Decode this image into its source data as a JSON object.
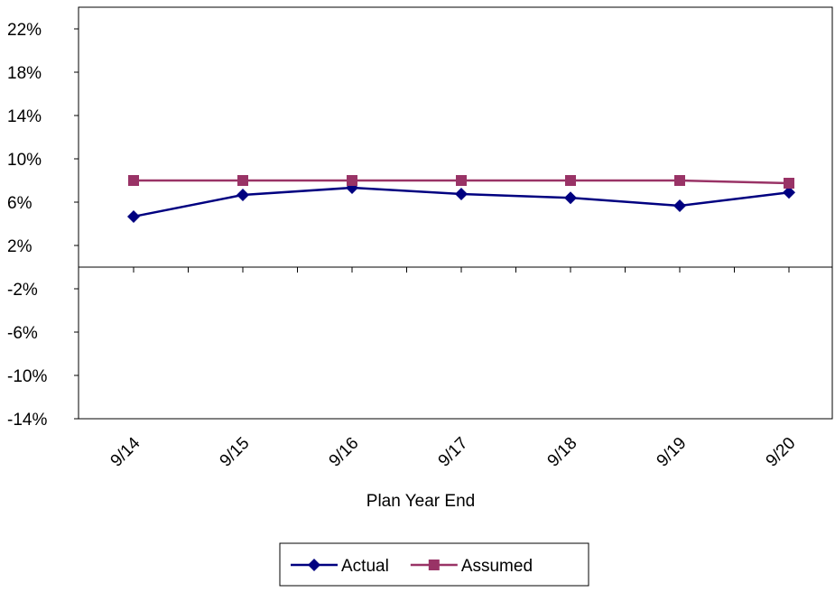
{
  "chart_data": {
    "type": "line",
    "x_label": "Plan Year End",
    "categories": [
      "9/14",
      "9/15",
      "9/16",
      "9/17",
      "9/18",
      "9/19",
      "9/20"
    ],
    "series": [
      {
        "name": "Actual",
        "color": "#000080",
        "marker": "diamond",
        "values": [
          4.67,
          6.67,
          7.33,
          6.75,
          6.4,
          5.67,
          6.9
        ]
      },
      {
        "name": "Assumed",
        "color": "#993366",
        "marker": "square",
        "values": [
          8,
          8,
          8,
          8,
          8,
          8,
          7.75
        ]
      }
    ],
    "ylim": [
      -14,
      24
    ],
    "yticks": [
      {
        "value": -14,
        "label": "-14%"
      },
      {
        "value": -10,
        "label": "-10%"
      },
      {
        "value": -6,
        "label": "-6%"
      },
      {
        "value": -2,
        "label": "-2%"
      },
      {
        "value": 2,
        "label": "2%"
      },
      {
        "value": 6,
        "label": "6%"
      },
      {
        "value": 10,
        "label": "10%"
      },
      {
        "value": 14,
        "label": "14%"
      },
      {
        "value": 18,
        "label": "18%"
      },
      {
        "value": 22,
        "label": "22%"
      }
    ],
    "legend": "bottom"
  }
}
